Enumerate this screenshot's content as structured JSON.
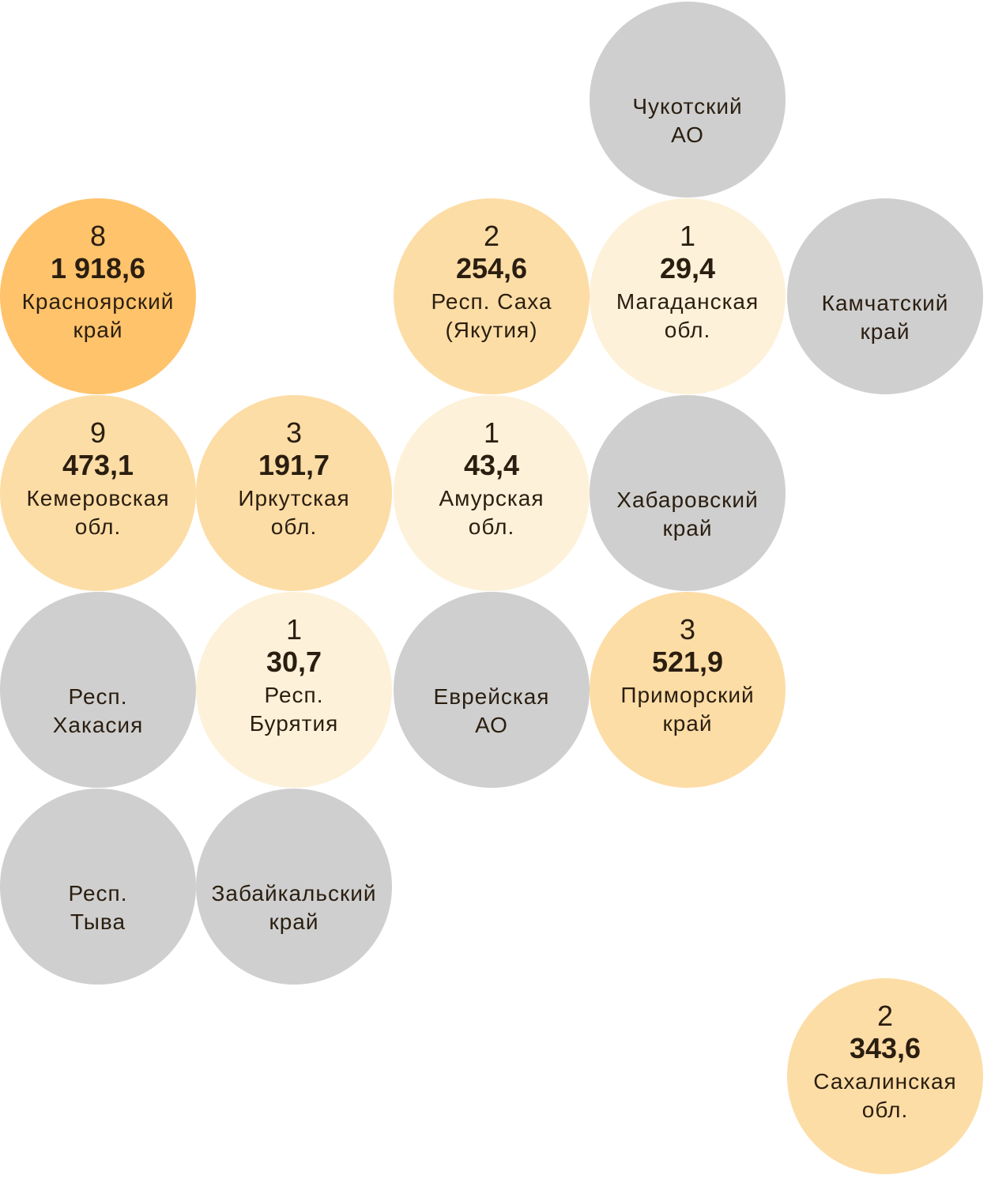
{
  "colors": {
    "high": "#FFC36C",
    "mid": "#FDDDA6",
    "low": "#FDF1D9",
    "none": "#CFCFCF",
    "text": "#2A1E10"
  },
  "regions": [
    {
      "name": [
        "Чукотский",
        "АО"
      ],
      "tier": "none"
    },
    {
      "count": "8",
      "value": "1 918,6",
      "name": [
        "Красноярский",
        "край"
      ],
      "tier": "high"
    },
    {
      "count": "2",
      "value": "254,6",
      "name": [
        "Респ. Саха",
        "(Якутия)"
      ],
      "tier": "mid"
    },
    {
      "count": "1",
      "value": "29,4",
      "name": [
        "Магаданская",
        "обл."
      ],
      "tier": "low"
    },
    {
      "name": [
        "Камчатский",
        "край"
      ],
      "tier": "none"
    },
    {
      "count": "9",
      "value": "473,1",
      "name": [
        "Кемеровская",
        "обл."
      ],
      "tier": "mid"
    },
    {
      "count": "3",
      "value": "191,7",
      "name": [
        "Иркутская",
        "обл."
      ],
      "tier": "mid"
    },
    {
      "count": "1",
      "value": "43,4",
      "name": [
        "Амурская",
        "обл."
      ],
      "tier": "low"
    },
    {
      "name": [
        "Хабаровский",
        "край"
      ],
      "tier": "none"
    },
    {
      "name": [
        "Респ.",
        "Хакасия"
      ],
      "tier": "none"
    },
    {
      "count": "1",
      "value": "30,7",
      "name": [
        "Респ.",
        "Бурятия"
      ],
      "tier": "low"
    },
    {
      "name": [
        "Еврейская",
        "АО"
      ],
      "tier": "none"
    },
    {
      "count": "3",
      "value": "521,9",
      "name": [
        "Приморский",
        "край"
      ],
      "tier": "mid"
    },
    {
      "name": [
        "Респ.",
        "Тыва"
      ],
      "tier": "none"
    },
    {
      "name": [
        "Забайкальский",
        "край"
      ],
      "tier": "none"
    },
    {
      "count": "2",
      "value": "343,6",
      "name": [
        "Сахалинская",
        "обл."
      ],
      "tier": "mid"
    }
  ]
}
